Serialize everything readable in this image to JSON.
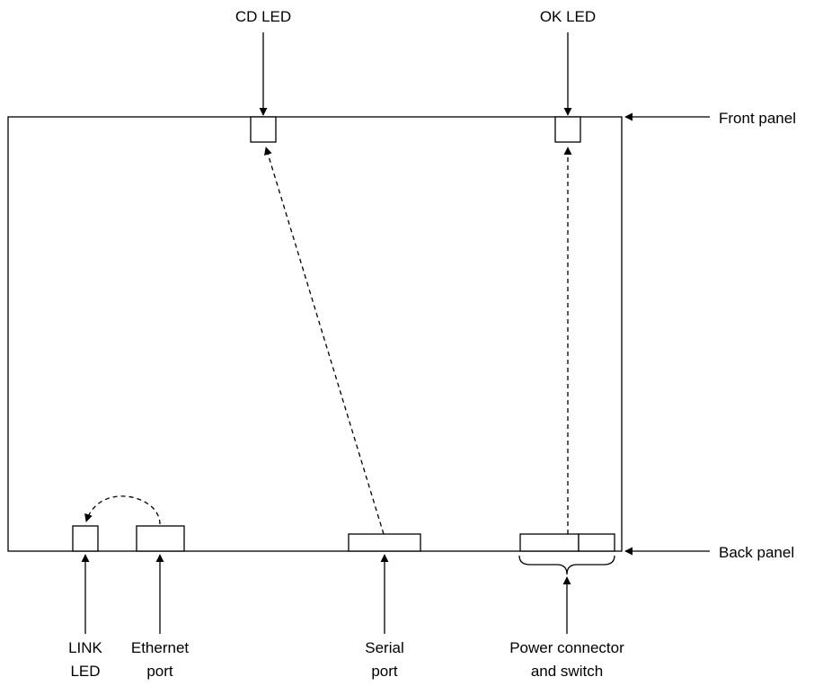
{
  "labels": {
    "cd_led": "CD LED",
    "ok_led": "OK LED",
    "front_panel": "Front panel",
    "back_panel": "Back panel",
    "link_led_line1": "LINK",
    "link_led_line2": "LED",
    "ethernet_port_line1": "Ethernet",
    "ethernet_port_line2": "port",
    "serial_port_line1": "Serial",
    "serial_port_line2": "port",
    "power_line1": "Power connector",
    "power_line2": "and switch"
  },
  "colors": {
    "stroke": "#000000",
    "background": "#ffffff"
  }
}
